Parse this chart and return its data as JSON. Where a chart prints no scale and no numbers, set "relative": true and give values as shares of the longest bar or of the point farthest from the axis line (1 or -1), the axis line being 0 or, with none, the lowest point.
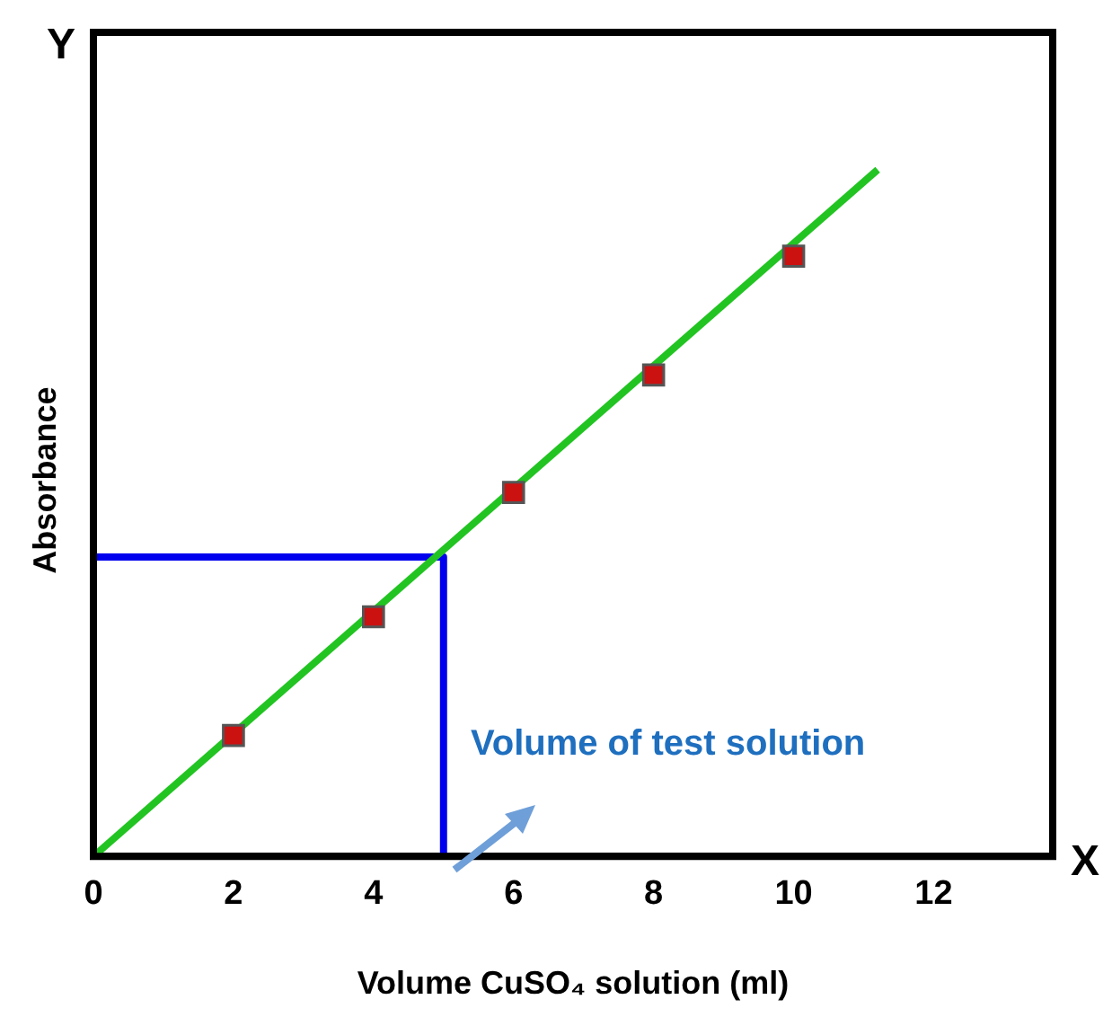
{
  "chart_data": {
    "type": "scatter",
    "xlabel": "Volume CuSO₄ solution (ml)",
    "ylabel": "Absorbance",
    "relative": true,
    "xlim": [
      0,
      13.7
    ],
    "xticks": [
      0,
      2,
      4,
      6,
      8,
      10,
      12
    ],
    "tick_labels": "x",
    "grid": false,
    "legend": false,
    "annotations": [
      "Y",
      "X",
      "Volume of test solution"
    ],
    "series": [
      {
        "type": "line",
        "color": "#22c422",
        "x": [
          0,
          11.2
        ],
        "values": [
          0,
          1
        ]
      },
      {
        "type": "line",
        "color": "#0000ee",
        "x": [
          0,
          5,
          5
        ],
        "values": [
          0.436,
          0.436,
          0
        ]
      },
      {
        "marker": "square",
        "color": "#cc1111",
        "x": [
          2,
          4,
          6,
          8,
          10
        ],
        "values": [
          0.176,
          0.349,
          0.53,
          0.701,
          0.874
        ]
      }
    ]
  }
}
